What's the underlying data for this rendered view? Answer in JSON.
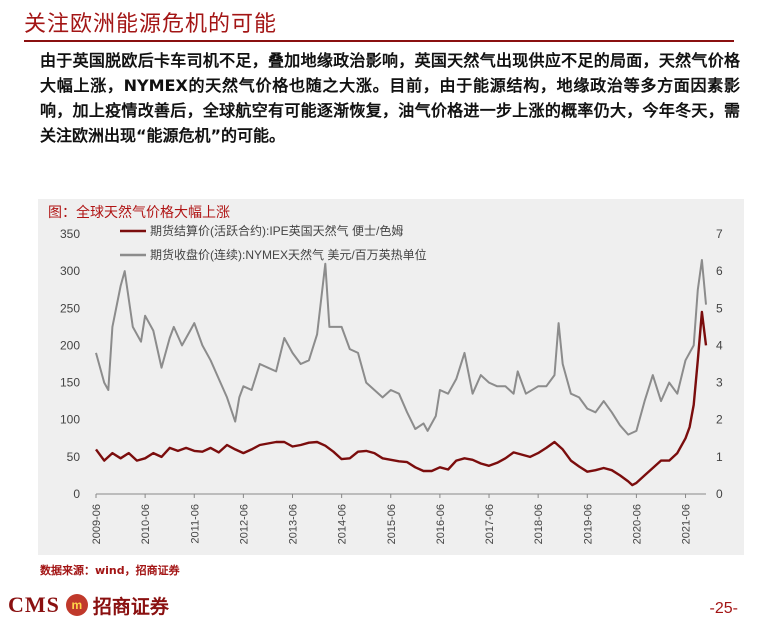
{
  "header": {
    "title": "关注欧洲能源危机的可能"
  },
  "body_text": "由于英国脱欧后卡车司机不足，叠加地缘政治影响，英国天然气出现供应不足的局面，天然气价格大幅上涨，NYMEX的天然气价格也随之大涨。目前，由于能源结构，地缘政治等多方面因素影响，加上疫情改善后，全球航空有可能逐渐恢复，油气价格进一步上涨的概率仍大，今年冬天，需关注欧洲出现“能源危机”的可能。",
  "chart_caption": "图：全球天然气价格大幅上涨",
  "source": "数据来源：wind，招商证券",
  "footer": {
    "logo_text": "CMS",
    "logo_mark": "m",
    "logo_cn": "招商证券",
    "page_number": "-25-"
  },
  "colors": {
    "accent": "#a31515",
    "series_ipe": "#7b0d0d",
    "series_nymex": "#8c8c8c",
    "chart_bg": "#efefef"
  },
  "chart_data": {
    "type": "line",
    "title": "",
    "xlabel": "",
    "ylabel": "",
    "x_ticks": [
      "2009-06",
      "2010-06",
      "2011-06",
      "2012-06",
      "2013-06",
      "2014-06",
      "2015-06",
      "2016-06",
      "2017-06",
      "2018-06",
      "2019-06",
      "2020-06",
      "2021-06"
    ],
    "x_range": [
      "2009-06",
      "2021-11"
    ],
    "y_left": {
      "min": 0,
      "max": 350,
      "ticks": [
        0,
        50,
        100,
        150,
        200,
        250,
        300,
        350
      ]
    },
    "y_right": {
      "min": 0,
      "max": 7,
      "ticks": [
        0,
        1,
        2,
        3,
        4,
        5,
        6,
        7
      ]
    },
    "legend_position": "top-left",
    "grid": false,
    "series": [
      {
        "name": "期货结算价(活跃合约):IPE英国天然气 便士/色姆",
        "axis": "left",
        "points": [
          [
            "2009-06",
            60
          ],
          [
            "2009-08",
            45
          ],
          [
            "2009-10",
            55
          ],
          [
            "2009-12",
            48
          ],
          [
            "2010-02",
            55
          ],
          [
            "2010-04",
            45
          ],
          [
            "2010-06",
            48
          ],
          [
            "2010-08",
            55
          ],
          [
            "2010-10",
            50
          ],
          [
            "2010-12",
            62
          ],
          [
            "2011-02",
            58
          ],
          [
            "2011-04",
            62
          ],
          [
            "2011-06",
            58
          ],
          [
            "2011-08",
            57
          ],
          [
            "2011-10",
            62
          ],
          [
            "2011-12",
            56
          ],
          [
            "2012-02",
            66
          ],
          [
            "2012-04",
            60
          ],
          [
            "2012-06",
            55
          ],
          [
            "2012-08",
            60
          ],
          [
            "2012-10",
            66
          ],
          [
            "2012-12",
            68
          ],
          [
            "2013-02",
            70
          ],
          [
            "2013-04",
            70
          ],
          [
            "2013-06",
            64
          ],
          [
            "2013-08",
            66
          ],
          [
            "2013-10",
            69
          ],
          [
            "2013-12",
            70
          ],
          [
            "2014-02",
            65
          ],
          [
            "2014-04",
            57
          ],
          [
            "2014-06",
            47
          ],
          [
            "2014-08",
            48
          ],
          [
            "2014-10",
            57
          ],
          [
            "2014-12",
            58
          ],
          [
            "2015-02",
            55
          ],
          [
            "2015-04",
            48
          ],
          [
            "2015-06",
            46
          ],
          [
            "2015-08",
            44
          ],
          [
            "2015-10",
            43
          ],
          [
            "2015-12",
            36
          ],
          [
            "2016-02",
            31
          ],
          [
            "2016-04",
            31
          ],
          [
            "2016-06",
            36
          ],
          [
            "2016-08",
            33
          ],
          [
            "2016-10",
            45
          ],
          [
            "2016-12",
            48
          ],
          [
            "2017-02",
            46
          ],
          [
            "2017-04",
            41
          ],
          [
            "2017-06",
            38
          ],
          [
            "2017-08",
            42
          ],
          [
            "2017-10",
            48
          ],
          [
            "2017-12",
            56
          ],
          [
            "2018-02",
            53
          ],
          [
            "2018-04",
            50
          ],
          [
            "2018-06",
            55
          ],
          [
            "2018-08",
            62
          ],
          [
            "2018-10",
            70
          ],
          [
            "2018-12",
            60
          ],
          [
            "2019-02",
            45
          ],
          [
            "2019-04",
            37
          ],
          [
            "2019-06",
            30
          ],
          [
            "2019-08",
            32
          ],
          [
            "2019-10",
            35
          ],
          [
            "2019-12",
            32
          ],
          [
            "2020-02",
            25
          ],
          [
            "2020-04",
            17
          ],
          [
            "2020-05",
            12
          ],
          [
            "2020-06",
            15
          ],
          [
            "2020-08",
            25
          ],
          [
            "2020-10",
            35
          ],
          [
            "2020-12",
            45
          ],
          [
            "2021-02",
            45
          ],
          [
            "2021-04",
            55
          ],
          [
            "2021-06",
            75
          ],
          [
            "2021-07",
            90
          ],
          [
            "2021-08",
            120
          ],
          [
            "2021-09",
            180
          ],
          [
            "2021-10",
            245
          ],
          [
            "2021-11",
            200
          ]
        ]
      },
      {
        "name": "期货收盘价(连续):NYMEX天然气 美元/百万英热单位",
        "axis": "right",
        "points": [
          [
            "2009-06",
            3.8
          ],
          [
            "2009-08",
            3.0
          ],
          [
            "2009-09",
            2.8
          ],
          [
            "2009-10",
            4.5
          ],
          [
            "2009-12",
            5.6
          ],
          [
            "2010-01",
            6.0
          ],
          [
            "2010-03",
            4.5
          ],
          [
            "2010-05",
            4.1
          ],
          [
            "2010-06",
            4.8
          ],
          [
            "2010-08",
            4.4
          ],
          [
            "2010-09",
            3.9
          ],
          [
            "2010-10",
            3.4
          ],
          [
            "2010-12",
            4.2
          ],
          [
            "2011-01",
            4.5
          ],
          [
            "2011-03",
            4.0
          ],
          [
            "2011-05",
            4.4
          ],
          [
            "2011-06",
            4.6
          ],
          [
            "2011-08",
            4.0
          ],
          [
            "2011-10",
            3.6
          ],
          [
            "2011-12",
            3.1
          ],
          [
            "2012-02",
            2.6
          ],
          [
            "2012-04",
            1.95
          ],
          [
            "2012-05",
            2.6
          ],
          [
            "2012-06",
            2.9
          ],
          [
            "2012-08",
            2.8
          ],
          [
            "2012-10",
            3.5
          ],
          [
            "2012-12",
            3.4
          ],
          [
            "2013-02",
            3.3
          ],
          [
            "2013-04",
            4.2
          ],
          [
            "2013-06",
            3.8
          ],
          [
            "2013-08",
            3.5
          ],
          [
            "2013-10",
            3.6
          ],
          [
            "2013-12",
            4.3
          ],
          [
            "2014-02",
            6.2
          ],
          [
            "2014-03",
            4.5
          ],
          [
            "2014-05",
            4.5
          ],
          [
            "2014-06",
            4.5
          ],
          [
            "2014-08",
            3.9
          ],
          [
            "2014-10",
            3.8
          ],
          [
            "2014-12",
            3.0
          ],
          [
            "2015-02",
            2.8
          ],
          [
            "2015-04",
            2.6
          ],
          [
            "2015-06",
            2.8
          ],
          [
            "2015-08",
            2.7
          ],
          [
            "2015-10",
            2.2
          ],
          [
            "2015-12",
            1.75
          ],
          [
            "2016-02",
            1.9
          ],
          [
            "2016-03",
            1.7
          ],
          [
            "2016-05",
            2.1
          ],
          [
            "2016-06",
            2.8
          ],
          [
            "2016-08",
            2.7
          ],
          [
            "2016-10",
            3.1
          ],
          [
            "2016-12",
            3.8
          ],
          [
            "2017-02",
            2.7
          ],
          [
            "2017-04",
            3.2
          ],
          [
            "2017-06",
            3.0
          ],
          [
            "2017-08",
            2.9
          ],
          [
            "2017-10",
            2.9
          ],
          [
            "2017-12",
            2.7
          ],
          [
            "2018-01",
            3.3
          ],
          [
            "2018-03",
            2.7
          ],
          [
            "2018-06",
            2.9
          ],
          [
            "2018-08",
            2.9
          ],
          [
            "2018-10",
            3.2
          ],
          [
            "2018-11",
            4.6
          ],
          [
            "2018-12",
            3.5
          ],
          [
            "2019-02",
            2.7
          ],
          [
            "2019-04",
            2.6
          ],
          [
            "2019-06",
            2.3
          ],
          [
            "2019-08",
            2.2
          ],
          [
            "2019-10",
            2.5
          ],
          [
            "2019-12",
            2.2
          ],
          [
            "2020-02",
            1.85
          ],
          [
            "2020-04",
            1.6
          ],
          [
            "2020-06",
            1.7
          ],
          [
            "2020-08",
            2.5
          ],
          [
            "2020-10",
            3.2
          ],
          [
            "2020-12",
            2.5
          ],
          [
            "2021-02",
            3.0
          ],
          [
            "2021-04",
            2.7
          ],
          [
            "2021-06",
            3.6
          ],
          [
            "2021-08",
            4.0
          ],
          [
            "2021-09",
            5.5
          ],
          [
            "2021-10",
            6.3
          ],
          [
            "2021-11",
            5.1
          ]
        ]
      }
    ]
  }
}
